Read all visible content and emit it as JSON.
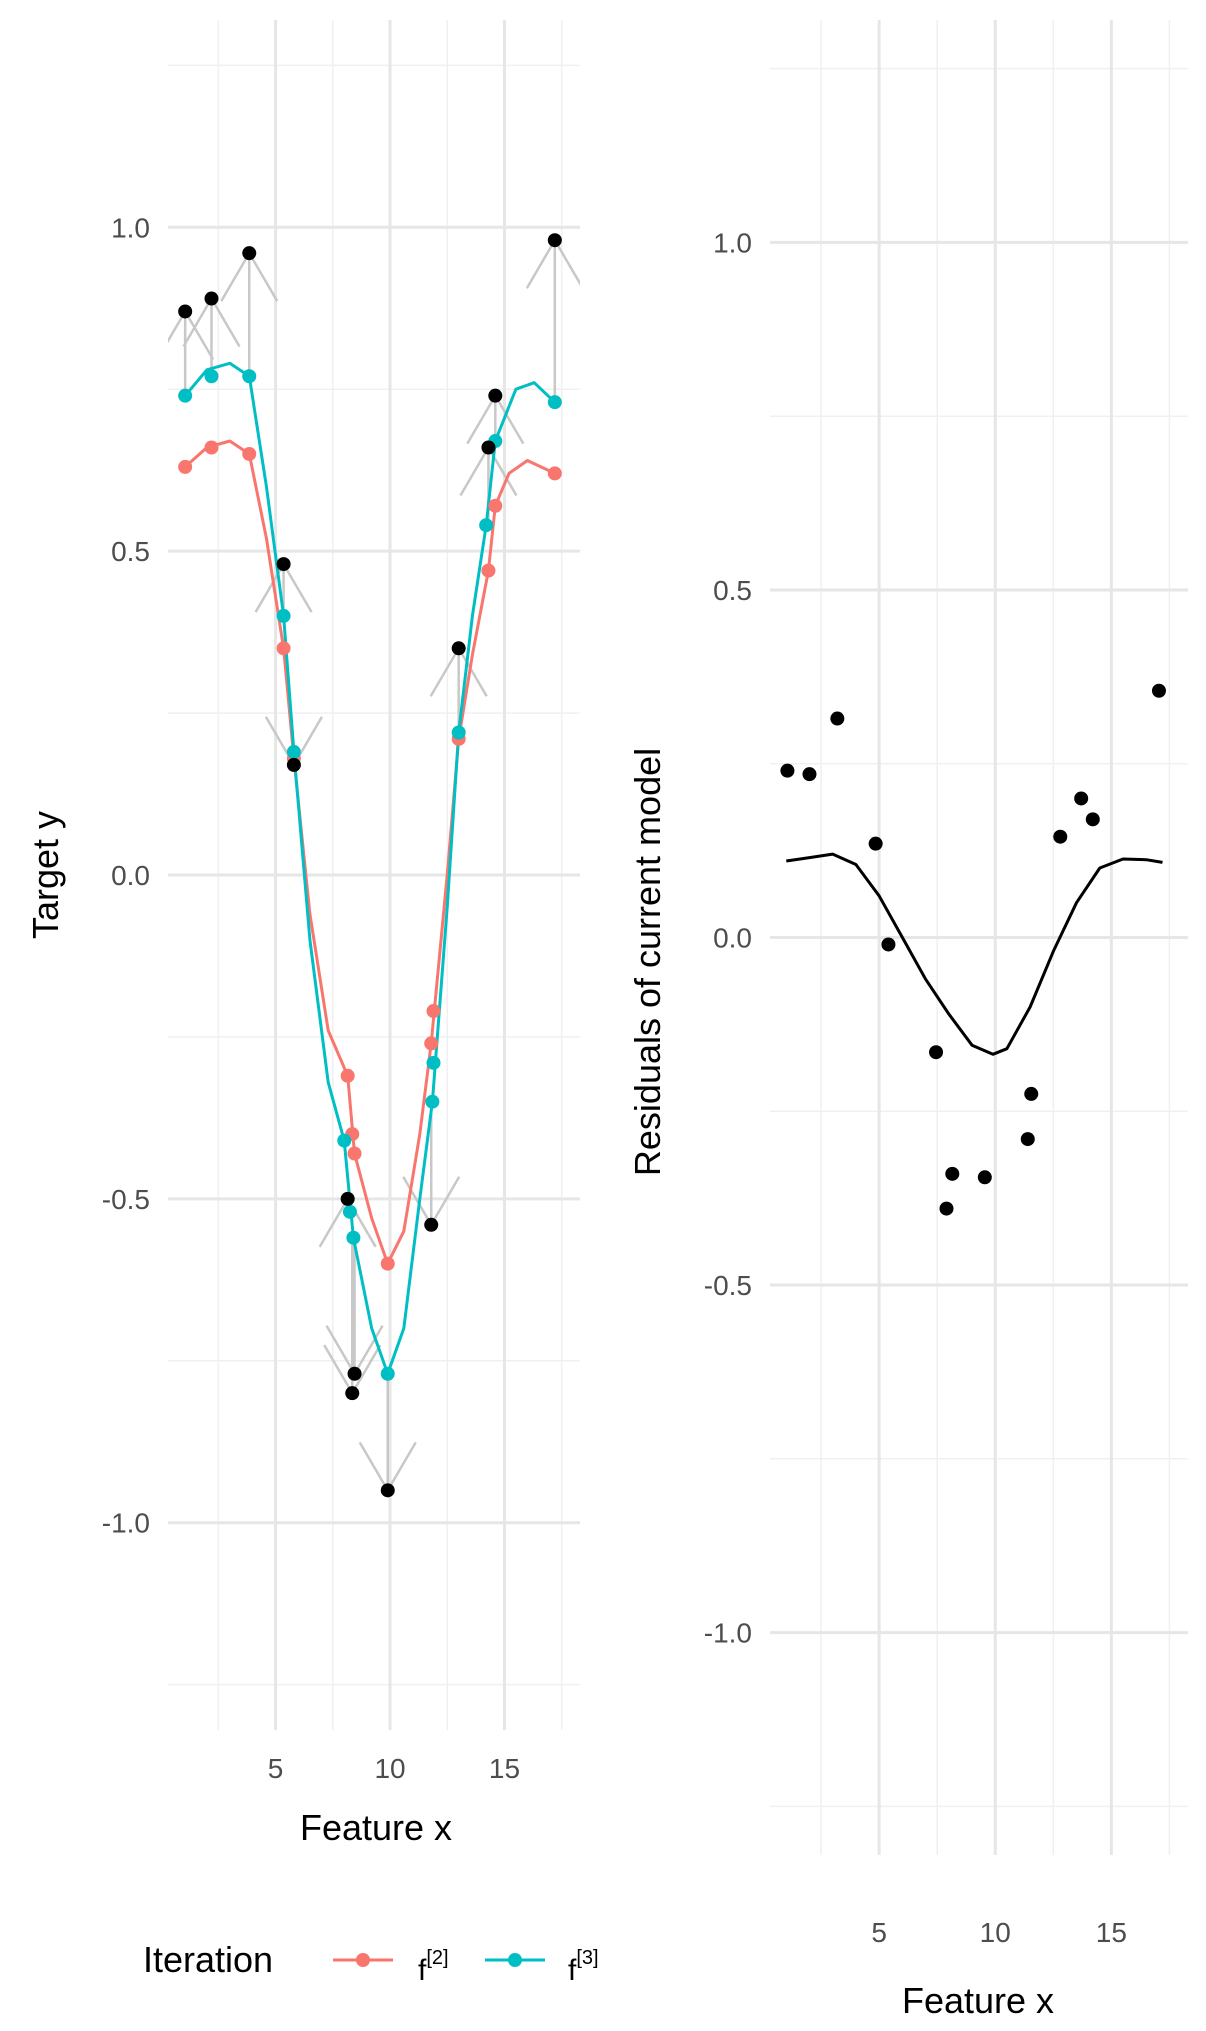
{
  "chart_data": [
    {
      "type": "line",
      "panel": "left",
      "xlabel": "Feature x",
      "ylabel": "Target y",
      "xticks": [
        5,
        10,
        15
      ],
      "yticks": [
        1.0,
        0.5,
        0.0,
        -0.5,
        -1.0
      ],
      "ytick_labels": [
        "1.0",
        "0.5",
        "0.0",
        "-0.5",
        "-1.0"
      ],
      "xlim": [
        0.3,
        18.3
      ],
      "ylim": [
        -1.32,
        1.32
      ],
      "grid": true,
      "legend": {
        "title": "Iteration",
        "position": "bottom",
        "entries": [
          {
            "label_base": "f",
            "label_sup": "[2]",
            "color": "#F8766D"
          },
          {
            "label_base": "f",
            "label_sup": "[3]",
            "color": "#00BFC4"
          }
        ]
      },
      "observed": {
        "color": "#000000",
        "x": [
          1.05,
          2.2,
          3.85,
          5.35,
          5.8,
          8.15,
          8.35,
          8.45,
          9.9,
          11.8,
          13.0,
          14.3,
          14.6,
          17.2
        ],
        "y": [
          0.87,
          0.89,
          0.96,
          0.48,
          0.17,
          -0.5,
          -0.8,
          -0.77,
          -0.95,
          -0.54,
          0.35,
          0.66,
          0.74,
          0.98
        ]
      },
      "arrow_color": "#c8c8c8",
      "series": [
        {
          "name": "f[2]",
          "color": "#F8766D",
          "point_x": [
            1.05,
            2.2,
            3.85,
            5.35,
            5.8,
            8.15,
            8.35,
            8.45,
            9.9,
            11.8,
            11.9,
            13.0,
            14.3,
            14.6,
            17.2
          ],
          "point_y": [
            0.63,
            0.66,
            0.65,
            0.35,
            0.18,
            -0.31,
            -0.4,
            -0.43,
            -0.6,
            -0.26,
            -0.21,
            0.21,
            0.47,
            0.57,
            0.62
          ],
          "curve_x": [
            1.05,
            2.0,
            3.0,
            3.85,
            4.6,
            5.35,
            5.8,
            6.5,
            7.3,
            8.15,
            8.45,
            9.2,
            9.9,
            10.6,
            11.3,
            11.8,
            12.5,
            13.0,
            13.6,
            14.3,
            14.6,
            15.2,
            16.0,
            17.2
          ],
          "curve_y": [
            0.63,
            0.66,
            0.67,
            0.65,
            0.52,
            0.35,
            0.18,
            -0.06,
            -0.24,
            -0.31,
            -0.43,
            -0.53,
            -0.6,
            -0.55,
            -0.4,
            -0.26,
            0.0,
            0.21,
            0.34,
            0.47,
            0.57,
            0.62,
            0.64,
            0.62
          ]
        },
        {
          "name": "f[3]",
          "color": "#00BFC4",
          "point_x": [
            1.05,
            2.2,
            3.85,
            5.35,
            5.8,
            8.0,
            8.25,
            8.4,
            9.9,
            11.85,
            11.9,
            13.0,
            14.2,
            14.6,
            17.2
          ],
          "point_y": [
            0.74,
            0.77,
            0.77,
            0.4,
            0.19,
            -0.41,
            -0.52,
            -0.56,
            -0.77,
            -0.35,
            -0.29,
            0.22,
            0.54,
            0.67,
            0.73
          ],
          "curve_x": [
            1.05,
            2.0,
            3.0,
            3.85,
            4.6,
            5.35,
            5.8,
            6.5,
            7.3,
            8.0,
            8.4,
            9.2,
            9.9,
            10.6,
            11.3,
            11.85,
            12.5,
            13.0,
            13.6,
            14.2,
            14.6,
            15.5,
            16.3,
            17.2
          ],
          "curve_y": [
            0.74,
            0.78,
            0.79,
            0.77,
            0.6,
            0.4,
            0.19,
            -0.1,
            -0.32,
            -0.41,
            -0.56,
            -0.7,
            -0.77,
            -0.7,
            -0.5,
            -0.35,
            -0.05,
            0.22,
            0.4,
            0.54,
            0.67,
            0.75,
            0.76,
            0.73
          ]
        }
      ]
    },
    {
      "type": "scatter",
      "panel": "right",
      "xlabel": "Feature x",
      "ylabel": "Residuals of current model",
      "xticks": [
        5,
        10,
        15
      ],
      "yticks": [
        1.0,
        0.5,
        0.0,
        -0.5,
        -1.0
      ],
      "ytick_labels": [
        "1.0",
        "0.5",
        "0.0",
        "-0.5",
        "-1.0"
      ],
      "xlim": [
        0.3,
        18.3
      ],
      "ylim": [
        -1.32,
        1.32
      ],
      "grid": true,
      "points": {
        "color": "#000000",
        "x": [
          1.05,
          2.0,
          3.2,
          4.85,
          5.4,
          7.45,
          7.9,
          8.15,
          9.55,
          11.4,
          11.55,
          12.8,
          13.7,
          14.2,
          17.05
        ],
        "y": [
          0.24,
          0.235,
          0.315,
          0.135,
          -0.01,
          -0.165,
          -0.39,
          -0.34,
          -0.345,
          -0.29,
          -0.225,
          0.145,
          0.2,
          0.17,
          0.355
        ]
      },
      "fit_line": {
        "color": "#000000",
        "x": [
          1.0,
          2.0,
          3.0,
          4.0,
          5.0,
          6.0,
          7.0,
          8.0,
          9.0,
          9.9,
          10.5,
          11.5,
          12.5,
          13.5,
          14.5,
          15.5,
          16.5,
          17.2
        ],
        "y": [
          0.11,
          0.115,
          0.12,
          0.105,
          0.06,
          0.0,
          -0.06,
          -0.11,
          -0.155,
          -0.168,
          -0.16,
          -0.1,
          -0.02,
          0.05,
          0.1,
          0.113,
          0.112,
          0.108
        ]
      }
    }
  ]
}
